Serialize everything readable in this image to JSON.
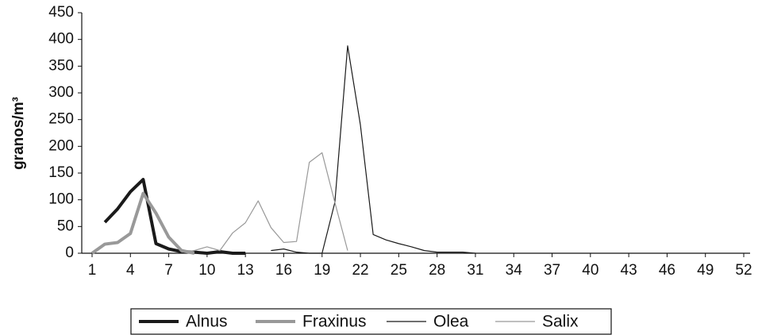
{
  "chart_data": {
    "type": "line",
    "y_label": "granos/m³",
    "x": [
      1,
      2,
      3,
      4,
      5,
      6,
      7,
      8,
      9,
      10,
      11,
      12,
      13,
      14,
      15,
      16,
      17,
      18,
      19,
      20,
      21,
      22,
      23,
      24,
      25,
      26,
      27,
      28,
      29,
      30,
      31,
      32,
      33,
      34,
      35,
      36,
      37,
      38,
      39,
      40,
      41,
      42,
      43,
      44,
      45,
      46,
      47,
      48,
      49,
      50,
      51,
      52
    ],
    "xlim": [
      1,
      52
    ],
    "xticks": [
      1,
      4,
      7,
      10,
      13,
      16,
      19,
      22,
      25,
      28,
      31,
      34,
      37,
      40,
      43,
      46,
      49,
      52
    ],
    "ylim": [
      0,
      450
    ],
    "yticks": [
      0,
      50,
      100,
      150,
      200,
      250,
      300,
      350,
      400,
      450
    ],
    "legend": "bottom",
    "series": [
      {
        "name": "Alnus",
        "color": "#1a1a1a",
        "line_width": 4,
        "values": [
          null,
          58,
          83,
          115,
          138,
          18,
          8,
          3,
          2,
          0,
          3,
          0,
          0,
          null,
          null,
          null,
          null,
          null,
          null,
          null,
          null,
          null,
          null,
          null,
          null,
          null,
          null,
          null,
          null,
          null,
          null,
          null,
          null,
          null,
          null,
          null,
          null,
          null,
          null,
          null,
          null,
          null,
          null,
          null,
          null,
          null,
          null,
          null,
          null,
          null,
          null,
          null
        ]
      },
      {
        "name": "Fraxinus",
        "color": "#999999",
        "line_width": 4,
        "values": [
          0,
          17,
          20,
          37,
          112,
          75,
          30,
          5,
          0,
          null,
          null,
          null,
          null,
          null,
          null,
          null,
          null,
          null,
          null,
          null,
          null,
          null,
          null,
          null,
          null,
          null,
          null,
          null,
          null,
          null,
          null,
          null,
          null,
          null,
          null,
          null,
          null,
          null,
          null,
          null,
          null,
          null,
          null,
          null,
          null,
          null,
          null,
          null,
          null,
          null,
          null,
          null
        ]
      },
      {
        "name": "Olea",
        "color": "#1a1a1a",
        "line_width": 1.2,
        "values": [
          null,
          null,
          null,
          null,
          null,
          null,
          null,
          null,
          null,
          null,
          null,
          null,
          null,
          null,
          5,
          8,
          2,
          0,
          0,
          95,
          388,
          240,
          35,
          25,
          18,
          12,
          5,
          2,
          2,
          2,
          0,
          null,
          null,
          null,
          null,
          null,
          null,
          null,
          null,
          null,
          null,
          null,
          null,
          null,
          null,
          null,
          null,
          null,
          null,
          null,
          null,
          null
        ]
      },
      {
        "name": "Salix",
        "color": "#999999",
        "line_width": 1.2,
        "values": [
          null,
          null,
          null,
          null,
          null,
          null,
          null,
          2,
          5,
          12,
          5,
          38,
          57,
          98,
          48,
          20,
          22,
          170,
          188,
          95,
          5,
          null,
          null,
          null,
          null,
          null,
          null,
          null,
          null,
          null,
          null,
          null,
          null,
          null,
          null,
          null,
          null,
          null,
          null,
          null,
          null,
          null,
          null,
          null,
          null,
          null,
          null,
          null,
          null,
          null,
          null,
          null
        ]
      }
    ]
  }
}
